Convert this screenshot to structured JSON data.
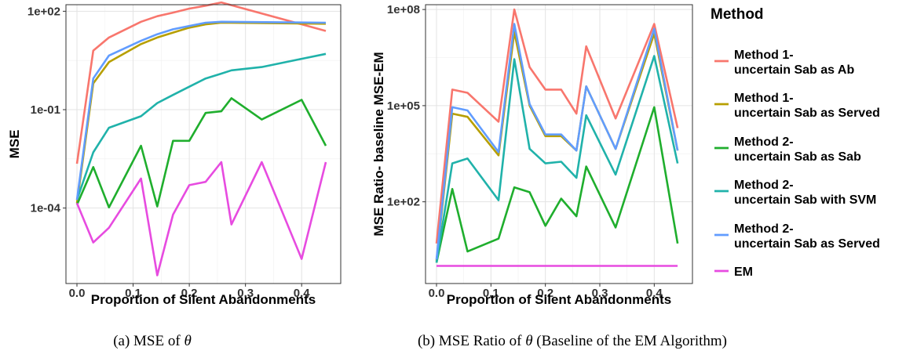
{
  "chart_data": [
    {
      "type": "line",
      "caption": {
        "pre": "(a)  MSE of ",
        "theta": "θ",
        "post": ""
      },
      "xlabel": "Proportion of Silent Abandonments",
      "ylabel": "MSE",
      "xlim": [
        0,
        0.45
      ],
      "ylim_log10": [
        -6.3,
        2.2
      ],
      "y_scale": "log10",
      "x_ticks": [
        {
          "value": 0.0,
          "label": "0.0"
        },
        {
          "value": 0.1,
          "label": "0.1"
        },
        {
          "value": 0.2,
          "label": "0.2"
        },
        {
          "value": 0.3,
          "label": "0.3"
        },
        {
          "value": 0.4,
          "label": "0.4"
        }
      ],
      "y_ticks": [
        {
          "log10": 2,
          "label": "1e+02"
        },
        {
          "log10": -1,
          "label": "1e-01"
        },
        {
          "log10": -4,
          "label": "1e-04"
        }
      ],
      "x": [
        0.0,
        0.029,
        0.057,
        0.114,
        0.143,
        0.171,
        0.2,
        0.229,
        0.257,
        0.275,
        0.329,
        0.4,
        0.443
      ],
      "series_log10": [
        {
          "name": "Method 1- uncertain Sab as Ab",
          "color": "#F8766D",
          "x": [
            0.0,
            0.029,
            0.057,
            0.114,
            0.143,
            0.171,
            0.2,
            0.229,
            0.257,
            0.443
          ],
          "y": [
            -2.65,
            0.8,
            1.2,
            1.68,
            1.85,
            1.96,
            2.08,
            2.17,
            2.27,
            1.4
          ]
        },
        {
          "name": "Method 1- uncertain Sab as Served",
          "color": "#B79F00",
          "x": [
            0.0,
            0.029,
            0.057,
            0.114,
            0.143,
            0.171,
            0.2,
            0.229,
            0.257,
            0.443
          ],
          "y": [
            -3.85,
            -0.2,
            0.45,
            1.0,
            1.2,
            1.35,
            1.5,
            1.6,
            1.65,
            1.62
          ]
        },
        {
          "name": "Method 2- uncertain Sab as Sab",
          "color": "#1FAE2D",
          "x": [
            0.0,
            0.029,
            0.057,
            0.114,
            0.143,
            0.171,
            0.2,
            0.229,
            0.257,
            0.275,
            0.329,
            0.4,
            0.443
          ],
          "y": [
            -3.9,
            -2.75,
            -3.98,
            -2.1,
            -3.95,
            -1.95,
            -1.95,
            -1.1,
            -1.05,
            -0.65,
            -1.3,
            -0.7,
            -2.1
          ]
        },
        {
          "name": "Method 2- uncertain Sab with SVM",
          "color": "#20B2AA",
          "x": [
            0.0,
            0.029,
            0.057,
            0.114,
            0.143,
            0.171,
            0.2,
            0.229,
            0.257,
            0.275,
            0.329,
            0.4,
            0.443
          ],
          "y": [
            -3.75,
            -2.3,
            -1.55,
            -1.2,
            -0.8,
            -0.55,
            -0.3,
            -0.05,
            0.1,
            0.2,
            0.3,
            0.55,
            0.7
          ]
        },
        {
          "name": "Method 2- uncertain Sab as Served",
          "color": "#619CFF",
          "x": [
            0.0,
            0.029,
            0.057,
            0.114,
            0.143,
            0.171,
            0.2,
            0.229,
            0.257,
            0.443
          ],
          "y": [
            -3.75,
            -0.05,
            0.65,
            1.1,
            1.3,
            1.45,
            1.55,
            1.65,
            1.68,
            1.65
          ]
        },
        {
          "name": "EM",
          "color": "#E74BE0",
          "x": [
            0.0,
            0.029,
            0.057,
            0.114,
            0.143,
            0.171,
            0.2,
            0.229,
            0.257,
            0.275,
            0.329,
            0.4,
            0.443
          ],
          "y": [
            -3.85,
            -5.05,
            -4.6,
            -3.1,
            -6.05,
            -4.2,
            -3.3,
            -3.2,
            -2.6,
            -4.5,
            -2.6,
            -5.55,
            -2.6
          ]
        }
      ]
    },
    {
      "type": "line",
      "caption": {
        "pre": "(b)  MSE Ratio of ",
        "theta": "θ",
        "post": " (Baseline of the EM Algorithm)"
      },
      "xlabel": "Proportion of Silent Abandonments",
      "ylabel": "MSE Ratio- baseline MSE-EM",
      "xlim": [
        0,
        0.45
      ],
      "ylim_log10": [
        -0.55,
        8.15
      ],
      "y_scale": "log10",
      "x_ticks": [
        {
          "value": 0.0,
          "label": "0.0"
        },
        {
          "value": 0.1,
          "label": "0.1"
        },
        {
          "value": 0.2,
          "label": "0.2"
        },
        {
          "value": 0.3,
          "label": "0.3"
        },
        {
          "value": 0.4,
          "label": "0.4"
        }
      ],
      "y_ticks": [
        {
          "log10": 8,
          "label": "1e+08"
        },
        {
          "log10": 5,
          "label": "1e+05"
        },
        {
          "log10": 2,
          "label": "1e+02"
        }
      ],
      "series_log10": [
        {
          "name": "Method 1- uncertain Sab as Ab",
          "color": "#F8766D",
          "x": [
            0.0,
            0.029,
            0.057,
            0.114,
            0.143,
            0.171,
            0.2,
            0.229,
            0.257,
            0.275,
            0.329,
            0.4,
            0.443
          ],
          "y": [
            0.7,
            5.5,
            5.4,
            4.5,
            8.0,
            6.2,
            5.5,
            5.5,
            4.75,
            6.85,
            4.6,
            7.55,
            4.3
          ]
        },
        {
          "name": "Method 1- uncertain Sab as Served",
          "color": "#B79F00",
          "x": [
            0.0,
            0.029,
            0.057,
            0.114,
            0.143,
            0.171,
            0.2,
            0.229,
            0.257,
            0.275,
            0.329,
            0.4,
            0.443
          ],
          "y": [
            0.15,
            4.75,
            4.65,
            3.45,
            7.3,
            5.0,
            4.05,
            4.05,
            3.6,
            5.6,
            3.65,
            7.25,
            3.6
          ]
        },
        {
          "name": "Method 2- uncertain Sab as Sab",
          "color": "#1FAE2D",
          "x": [
            0.0,
            0.029,
            0.057,
            0.114,
            0.143,
            0.171,
            0.2,
            0.229,
            0.257,
            0.275,
            0.329,
            0.4,
            0.443
          ],
          "y": [
            0.1,
            2.4,
            0.45,
            0.85,
            2.45,
            2.3,
            1.25,
            2.1,
            1.55,
            3.1,
            1.2,
            4.95,
            0.7
          ]
        },
        {
          "name": "Method 2- uncertain Sab with SVM",
          "color": "#20B2AA",
          "x": [
            0.0,
            0.029,
            0.057,
            0.114,
            0.143,
            0.171,
            0.2,
            0.229,
            0.257,
            0.275,
            0.329,
            0.4,
            0.443
          ],
          "y": [
            0.1,
            3.2,
            3.35,
            2.05,
            6.45,
            3.65,
            3.2,
            3.25,
            2.75,
            4.7,
            2.85,
            6.55,
            3.2
          ]
        },
        {
          "name": "Method 2- uncertain Sab as Served",
          "color": "#619CFF",
          "x": [
            0.0,
            0.029,
            0.057,
            0.114,
            0.143,
            0.171,
            0.2,
            0.229,
            0.257,
            0.275,
            0.329,
            0.4,
            0.443
          ],
          "y": [
            0.2,
            4.95,
            4.85,
            3.55,
            7.55,
            5.05,
            4.1,
            4.1,
            3.6,
            5.6,
            3.65,
            7.4,
            3.6
          ]
        },
        {
          "name": "EM",
          "color": "#E74BE0",
          "x": [
            0.0,
            0.443
          ],
          "y": [
            0.0,
            0.0
          ]
        }
      ]
    }
  ],
  "legend": {
    "title": "Method",
    "items": [
      {
        "line1": "Method 1-",
        "line2": "uncertain Sab as Ab",
        "color": "#F8766D"
      },
      {
        "line1": "Method 1-",
        "line2": "uncertain Sab as Served",
        "color": "#B79F00"
      },
      {
        "line1": "Method 2-",
        "line2": "uncertain Sab as Sab",
        "color": "#1FAE2D"
      },
      {
        "line1": "Method 2-",
        "line2": "uncertain Sab with SVM",
        "color": "#20B2AA"
      },
      {
        "line1": "Method 2-",
        "line2": "uncertain Sab as Served",
        "color": "#619CFF"
      },
      {
        "line1": "EM",
        "line2": "",
        "color": "#E74BE0"
      }
    ]
  }
}
